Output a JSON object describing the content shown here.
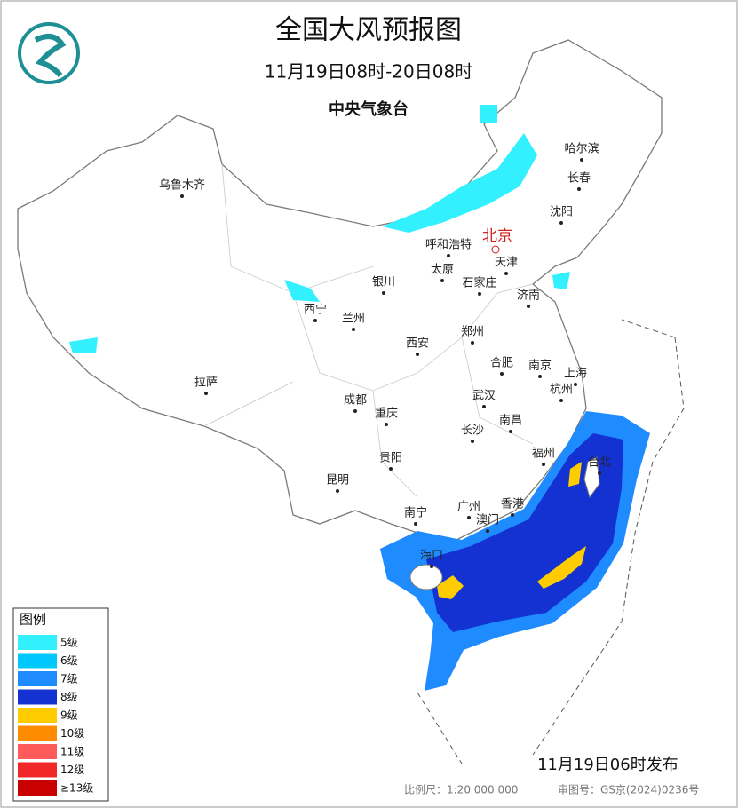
{
  "header": {
    "title": "全国大风预报图",
    "subtitle": "11月19日08时-20日08时",
    "issuer": "中央气象台"
  },
  "capital": "北京",
  "cities": [
    "乌鲁木齐",
    "哈尔滨",
    "长春",
    "沈阳",
    "呼和浩特",
    "天津",
    "太原",
    "石家庄",
    "济南",
    "银川",
    "西宁",
    "兰州",
    "郑州",
    "西安",
    "合肥",
    "南京",
    "上海",
    "杭州",
    "拉萨",
    "成都",
    "武汉",
    "南昌",
    "重庆",
    "长沙",
    "福州",
    "台北",
    "贵阳",
    "昆明",
    "南宁",
    "广州",
    "香港",
    "澳门",
    "海口"
  ],
  "legend": {
    "title": "图例",
    "items": [
      {
        "label": "5级",
        "color": "#33f0ff"
      },
      {
        "label": "6级",
        "color": "#00c8ff"
      },
      {
        "label": "7级",
        "color": "#1e8cff"
      },
      {
        "label": "8级",
        "color": "#1432d2"
      },
      {
        "label": "9级",
        "color": "#ffcc00"
      },
      {
        "label": "10级",
        "color": "#ff8c00"
      },
      {
        "label": "11级",
        "color": "#ff5a5a"
      },
      {
        "label": "12级",
        "color": "#f02828"
      },
      {
        "label": "≥13级",
        "color": "#c80000"
      }
    ]
  },
  "footer": {
    "issued": "11月19日06时发布",
    "scale": "比例尺：1:20 000 000",
    "map_no": "审图号：GS京(2024)0236号"
  }
}
